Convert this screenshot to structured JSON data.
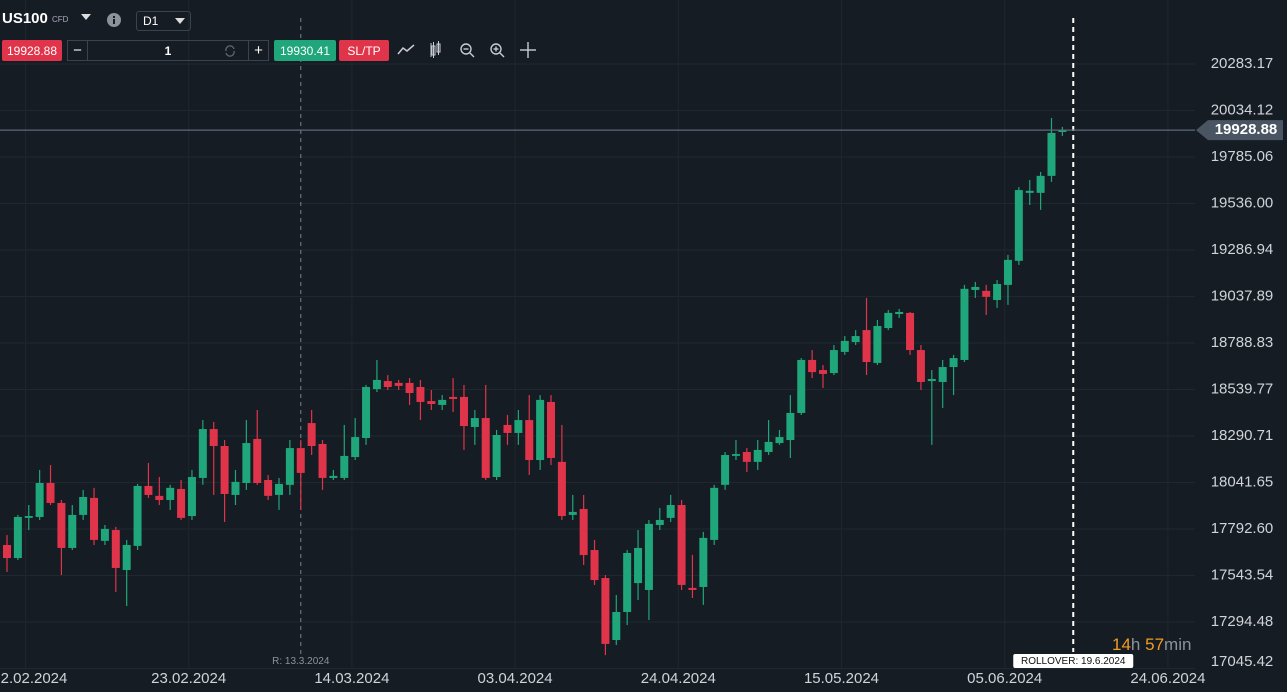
{
  "toolbar": {
    "symbol": "US100",
    "symbol_type": "CFD",
    "timeframe": "D1",
    "sell_price": "19928.88",
    "quantity": "1",
    "buy_price": "19930.41",
    "sl_tp": "SL/TP"
  },
  "countdown": [
    "14",
    "h",
    "57",
    "min"
  ],
  "chart_data": {
    "type": "candlestick",
    "up_color": "#1fa67a",
    "down_color": "#e0344a",
    "grid": true,
    "xlim": [
      -0.643,
      109.19
    ],
    "ylim": [
      17040,
      20626
    ],
    "yticks": [
      20283.17,
      20034.12,
      19785.06,
      {
        "value": 19536,
        "label": "19536.00"
      },
      19286.94,
      19037.89,
      18788.83,
      18539.77,
      18290.71,
      18041.65,
      {
        "value": 17792.6,
        "label": "17792.60"
      },
      17543.54,
      17294.48,
      17045.42
    ],
    "xticks": [
      {
        "value": 1.7,
        "label": "2.02.2024"
      },
      {
        "value": 16.7,
        "label": "23.02.2024"
      },
      {
        "value": 31.7,
        "label": "14.03.2024"
      },
      {
        "value": 46.7,
        "label": "03.04.2024"
      },
      {
        "value": 61.7,
        "label": "24.04.2024"
      },
      {
        "value": 76.7,
        "label": "15.05.2024"
      },
      {
        "value": 91.7,
        "label": "05.06.2024"
      },
      {
        "value": 106.7,
        "label": "24.06.2024"
      }
    ],
    "current_price": 19928.88,
    "markers": [
      {
        "x": 27,
        "label": "R: 13.3.2024",
        "style": "rollover-past"
      },
      {
        "x": 98,
        "label": "ROLLOVER: 19.6.2024",
        "style": "rollover-next"
      }
    ],
    "candles": [
      {
        "open": 17707,
        "high": 17760,
        "low": 17562,
        "close": 17637
      },
      {
        "open": 17637,
        "high": 17868,
        "low": 17626,
        "close": 17857
      },
      {
        "open": 17852,
        "high": 17921,
        "low": 17787,
        "close": 17862
      },
      {
        "open": 17857,
        "high": 18109,
        "low": 17841,
        "close": 18039
      },
      {
        "open": 18039,
        "high": 18135,
        "low": 17921,
        "close": 17932
      },
      {
        "open": 17932,
        "high": 17948,
        "low": 17546,
        "close": 17691
      },
      {
        "open": 17691,
        "high": 17921,
        "low": 17680,
        "close": 17868
      },
      {
        "open": 17868,
        "high": 18002,
        "low": 17841,
        "close": 17964
      },
      {
        "open": 17959,
        "high": 18013,
        "low": 17707,
        "close": 17734
      },
      {
        "open": 17729,
        "high": 17814,
        "low": 17707,
        "close": 17793
      },
      {
        "open": 17787,
        "high": 17804,
        "low": 17455,
        "close": 17584
      },
      {
        "open": 17573,
        "high": 17734,
        "low": 17380,
        "close": 17707
      },
      {
        "open": 17702,
        "high": 18034,
        "low": 17680,
        "close": 18023
      },
      {
        "open": 18023,
        "high": 18146,
        "low": 17959,
        "close": 17975
      },
      {
        "open": 17970,
        "high": 18071,
        "low": 17921,
        "close": 17948
      },
      {
        "open": 17948,
        "high": 18029,
        "low": 17895,
        "close": 18013
      },
      {
        "open": 18007,
        "high": 18055,
        "low": 17841,
        "close": 17852
      },
      {
        "open": 17862,
        "high": 18109,
        "low": 17841,
        "close": 18071
      },
      {
        "open": 18066,
        "high": 18376,
        "low": 18029,
        "close": 18328
      },
      {
        "open": 18328,
        "high": 18366,
        "low": 17975,
        "close": 18237
      },
      {
        "open": 18237,
        "high": 18269,
        "low": 17830,
        "close": 17980
      },
      {
        "open": 17975,
        "high": 18109,
        "low": 17921,
        "close": 18045
      },
      {
        "open": 18039,
        "high": 18376,
        "low": 18002,
        "close": 18253
      },
      {
        "open": 18275,
        "high": 18430,
        "low": 18029,
        "close": 18039
      },
      {
        "open": 18055,
        "high": 18082,
        "low": 17948,
        "close": 17970
      },
      {
        "open": 17975,
        "high": 18066,
        "low": 17895,
        "close": 18034
      },
      {
        "open": 18029,
        "high": 18269,
        "low": 17975,
        "close": 18226
      },
      {
        "open": 18226,
        "high": 18269,
        "low": 17895,
        "close": 18093
      },
      {
        "open": 18360,
        "high": 18430,
        "low": 18189,
        "close": 18237
      },
      {
        "open": 18248,
        "high": 18269,
        "low": 18002,
        "close": 18066
      },
      {
        "open": 18066,
        "high": 18109,
        "low": 18055,
        "close": 18077
      },
      {
        "open": 18066,
        "high": 18350,
        "low": 18055,
        "close": 18184
      },
      {
        "open": 18178,
        "high": 18387,
        "low": 18162,
        "close": 18285
      },
      {
        "open": 18280,
        "high": 18564,
        "low": 18243,
        "close": 18553
      },
      {
        "open": 18542,
        "high": 18698,
        "low": 18526,
        "close": 18591
      },
      {
        "open": 18585,
        "high": 18617,
        "low": 18537,
        "close": 18553
      },
      {
        "open": 18575,
        "high": 18591,
        "low": 18537,
        "close": 18559
      },
      {
        "open": 18575,
        "high": 18601,
        "low": 18457,
        "close": 18521
      },
      {
        "open": 18553,
        "high": 18591,
        "low": 18376,
        "close": 18473
      },
      {
        "open": 18478,
        "high": 18537,
        "low": 18430,
        "close": 18462
      },
      {
        "open": 18457,
        "high": 18510,
        "low": 18430,
        "close": 18484
      },
      {
        "open": 18500,
        "high": 18601,
        "low": 18419,
        "close": 18489
      },
      {
        "open": 18500,
        "high": 18564,
        "low": 18216,
        "close": 18344
      },
      {
        "open": 18339,
        "high": 18430,
        "low": 18243,
        "close": 18387
      },
      {
        "open": 18387,
        "high": 18564,
        "low": 18055,
        "close": 18066
      },
      {
        "open": 18071,
        "high": 18323,
        "low": 18055,
        "close": 18296
      },
      {
        "open": 18350,
        "high": 18403,
        "low": 18243,
        "close": 18307
      },
      {
        "open": 18307,
        "high": 18430,
        "low": 18243,
        "close": 18376
      },
      {
        "open": 18376,
        "high": 18510,
        "low": 18082,
        "close": 18162
      },
      {
        "open": 18162,
        "high": 18510,
        "low": 18109,
        "close": 18484
      },
      {
        "open": 18473,
        "high": 18510,
        "low": 18135,
        "close": 18173
      },
      {
        "open": 18152,
        "high": 18350,
        "low": 17841,
        "close": 17862
      },
      {
        "open": 17868,
        "high": 17975,
        "low": 17841,
        "close": 17884
      },
      {
        "open": 17900,
        "high": 17975,
        "low": 17600,
        "close": 17653
      },
      {
        "open": 17680,
        "high": 17734,
        "low": 17493,
        "close": 17519
      },
      {
        "open": 17530,
        "high": 17546,
        "low": 17117,
        "close": 17177
      },
      {
        "open": 17198,
        "high": 17439,
        "low": 17171,
        "close": 17348
      },
      {
        "open": 17348,
        "high": 17680,
        "low": 17278,
        "close": 17664
      },
      {
        "open": 17503,
        "high": 17787,
        "low": 17412,
        "close": 17691
      },
      {
        "open": 17466,
        "high": 17841,
        "low": 17305,
        "close": 17820
      },
      {
        "open": 17814,
        "high": 17905,
        "low": 17787,
        "close": 17841
      },
      {
        "open": 17852,
        "high": 17975,
        "low": 17830,
        "close": 17921
      },
      {
        "open": 17921,
        "high": 17948,
        "low": 17466,
        "close": 17493
      },
      {
        "open": 17477,
        "high": 17654,
        "low": 17423,
        "close": 17466
      },
      {
        "open": 17482,
        "high": 17777,
        "low": 17386,
        "close": 17745
      },
      {
        "open": 17734,
        "high": 18029,
        "low": 17707,
        "close": 18013
      },
      {
        "open": 18029,
        "high": 18205,
        "low": 18002,
        "close": 18189
      },
      {
        "open": 18184,
        "high": 18269,
        "low": 18162,
        "close": 18194
      },
      {
        "open": 18205,
        "high": 18226,
        "low": 18098,
        "close": 18152
      },
      {
        "open": 18152,
        "high": 18269,
        "low": 18109,
        "close": 18216
      },
      {
        "open": 18205,
        "high": 18376,
        "low": 18189,
        "close": 18259
      },
      {
        "open": 18253,
        "high": 18323,
        "low": 18243,
        "close": 18285
      },
      {
        "open": 18269,
        "high": 18510,
        "low": 18173,
        "close": 18414
      },
      {
        "open": 18414,
        "high": 18708,
        "low": 18403,
        "close": 18698
      },
      {
        "open": 18698,
        "high": 18751,
        "low": 18601,
        "close": 18633
      },
      {
        "open": 18644,
        "high": 18671,
        "low": 18548,
        "close": 18623
      },
      {
        "open": 18628,
        "high": 18778,
        "low": 18617,
        "close": 18751
      },
      {
        "open": 18741,
        "high": 18826,
        "low": 18725,
        "close": 18800
      },
      {
        "open": 18794,
        "high": 18858,
        "low": 18778,
        "close": 18826
      },
      {
        "open": 18858,
        "high": 19030,
        "low": 18617,
        "close": 18687
      },
      {
        "open": 18682,
        "high": 18912,
        "low": 18671,
        "close": 18880
      },
      {
        "open": 18869,
        "high": 18966,
        "low": 18858,
        "close": 18950
      },
      {
        "open": 18944,
        "high": 18971,
        "low": 18923,
        "close": 18955
      },
      {
        "open": 18950,
        "high": 18955,
        "low": 18725,
        "close": 18751
      },
      {
        "open": 18751,
        "high": 18778,
        "low": 18537,
        "close": 18580
      },
      {
        "open": 18585,
        "high": 18644,
        "low": 18243,
        "close": 18596
      },
      {
        "open": 18580,
        "high": 18698,
        "low": 18441,
        "close": 18660
      },
      {
        "open": 18660,
        "high": 18725,
        "low": 18510,
        "close": 18708
      },
      {
        "open": 18698,
        "high": 19100,
        "low": 18687,
        "close": 19079
      },
      {
        "open": 19073,
        "high": 19116,
        "low": 19030,
        "close": 19089
      },
      {
        "open": 19068,
        "high": 19100,
        "low": 18939,
        "close": 19036
      },
      {
        "open": 19019,
        "high": 19126,
        "low": 18977,
        "close": 19105
      },
      {
        "open": 19100,
        "high": 19261,
        "low": 18993,
        "close": 19234
      },
      {
        "open": 19229,
        "high": 19624,
        "low": 19207,
        "close": 19608
      },
      {
        "open": 19593,
        "high": 19662,
        "low": 19528,
        "close": 19604
      },
      {
        "open": 19593,
        "high": 19705,
        "low": 19502,
        "close": 19684
      },
      {
        "open": 19684,
        "high": 19994,
        "low": 19652,
        "close": 19914
      },
      {
        "open": 19919,
        "high": 19946,
        "low": 19898,
        "close": 19928.88
      }
    ]
  }
}
